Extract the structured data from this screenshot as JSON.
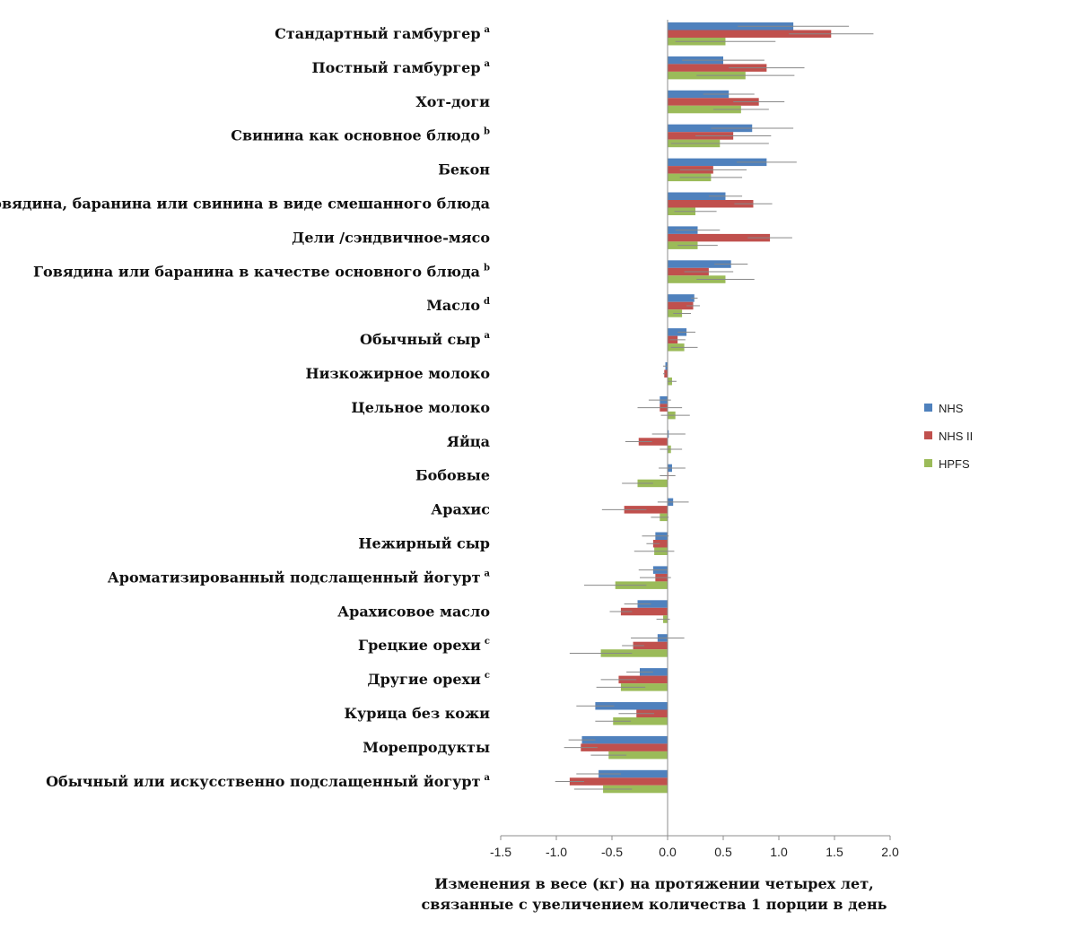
{
  "chart_data": {
    "type": "bar",
    "orientation": "horizontal",
    "categories": [
      {
        "label": "Стандартный гамбургер",
        "sup": "a"
      },
      {
        "label": "Постный гамбургер",
        "sup": "a"
      },
      {
        "label": "Хот-доги",
        "sup": ""
      },
      {
        "label": "Свинина как основное блюдо",
        "sup": "b"
      },
      {
        "label": "Бекон",
        "sup": ""
      },
      {
        "label": "Говядина, баранина или свинина в виде смешанного блюда",
        "sup": ""
      },
      {
        "label": "Дели /сэндвичное-мясо",
        "sup": ""
      },
      {
        "label": "Говядина или баранина в качестве основного блюда",
        "sup": "b"
      },
      {
        "label": "Масло",
        "sup": "d"
      },
      {
        "label": "Обычный сыр",
        "sup": "a"
      },
      {
        "label": "Низкожирное молоко",
        "sup": ""
      },
      {
        "label": "Цельное молоко",
        "sup": ""
      },
      {
        "label": "Яйца",
        "sup": ""
      },
      {
        "label": "Бобовые",
        "sup": ""
      },
      {
        "label": "Арахис",
        "sup": ""
      },
      {
        "label": "Нежирный сыр",
        "sup": ""
      },
      {
        "label": "Ароматизированный  подслащенный йогурт",
        "sup": "a"
      },
      {
        "label": "Арахисовое  масло",
        "sup": ""
      },
      {
        "label": "Грецкие орехи",
        "sup": "c"
      },
      {
        "label": "Другие  орехи",
        "sup": "c"
      },
      {
        "label": "Курица без кожи",
        "sup": ""
      },
      {
        "label": "Морепродукты",
        "sup": ""
      },
      {
        "label": "Обычный или искусственно подслащенный йогурт",
        "sup": "a"
      }
    ],
    "series": [
      {
        "name": "NHS",
        "color": "#4f81bd",
        "values": [
          1.13,
          0.5,
          0.55,
          0.76,
          0.89,
          0.52,
          0.27,
          0.57,
          0.24,
          0.17,
          -0.02,
          -0.07,
          0.01,
          0.04,
          0.05,
          -0.11,
          -0.13,
          -0.27,
          -0.09,
          -0.25,
          -0.65,
          -0.77,
          -0.62
        ],
        "errors": [
          0.5,
          0.37,
          0.23,
          0.37,
          0.27,
          0.15,
          0.2,
          0.15,
          0.03,
          0.08,
          0.02,
          0.1,
          0.15,
          0.12,
          0.14,
          0.12,
          0.13,
          0.12,
          0.24,
          0.12,
          0.17,
          0.12,
          0.2
        ]
      },
      {
        "name": "NHS II",
        "color": "#c0504d",
        "values": [
          1.47,
          0.89,
          0.82,
          0.59,
          0.41,
          0.77,
          0.92,
          0.37,
          0.23,
          0.09,
          -0.03,
          -0.07,
          -0.26,
          0.0,
          -0.39,
          -0.13,
          -0.11,
          -0.42,
          -0.31,
          -0.44,
          -0.28,
          -0.78,
          -0.88
        ],
        "errors": [
          0.38,
          0.34,
          0.23,
          0.34,
          0.3,
          0.17,
          0.2,
          0.22,
          0.06,
          0.07,
          0.01,
          0.2,
          0.12,
          0.07,
          0.2,
          0.06,
          0.14,
          0.1,
          0.1,
          0.16,
          0.16,
          0.15,
          0.13
        ]
      },
      {
        "name": "HPFS",
        "color": "#9bbb59",
        "values": [
          0.52,
          0.7,
          0.66,
          0.47,
          0.39,
          0.25,
          0.27,
          0.52,
          0.13,
          0.15,
          0.04,
          0.07,
          0.03,
          -0.27,
          -0.07,
          -0.12,
          -0.47,
          -0.04,
          -0.6,
          -0.42,
          -0.49,
          -0.53,
          -0.58
        ],
        "errors": [
          0.45,
          0.44,
          0.25,
          0.44,
          0.28,
          0.19,
          0.18,
          0.26,
          0.08,
          0.12,
          0.04,
          0.13,
          0.1,
          0.14,
          0.08,
          0.18,
          0.28,
          0.06,
          0.28,
          0.22,
          0.16,
          0.16,
          0.26
        ]
      }
    ],
    "xlim": [
      -1.5,
      2.0
    ],
    "xticks": [
      "-1.5",
      "-1.0",
      "-0.5",
      "0.0",
      "0.5",
      "1.0",
      "1.5",
      "2.0"
    ],
    "xlabel_line1": "Изменения в весе (кг) на протяжении четырех лет,",
    "xlabel_line2": "связанные с увеличением количества 1 порции в день",
    "legend_position": "right",
    "grid": false
  }
}
